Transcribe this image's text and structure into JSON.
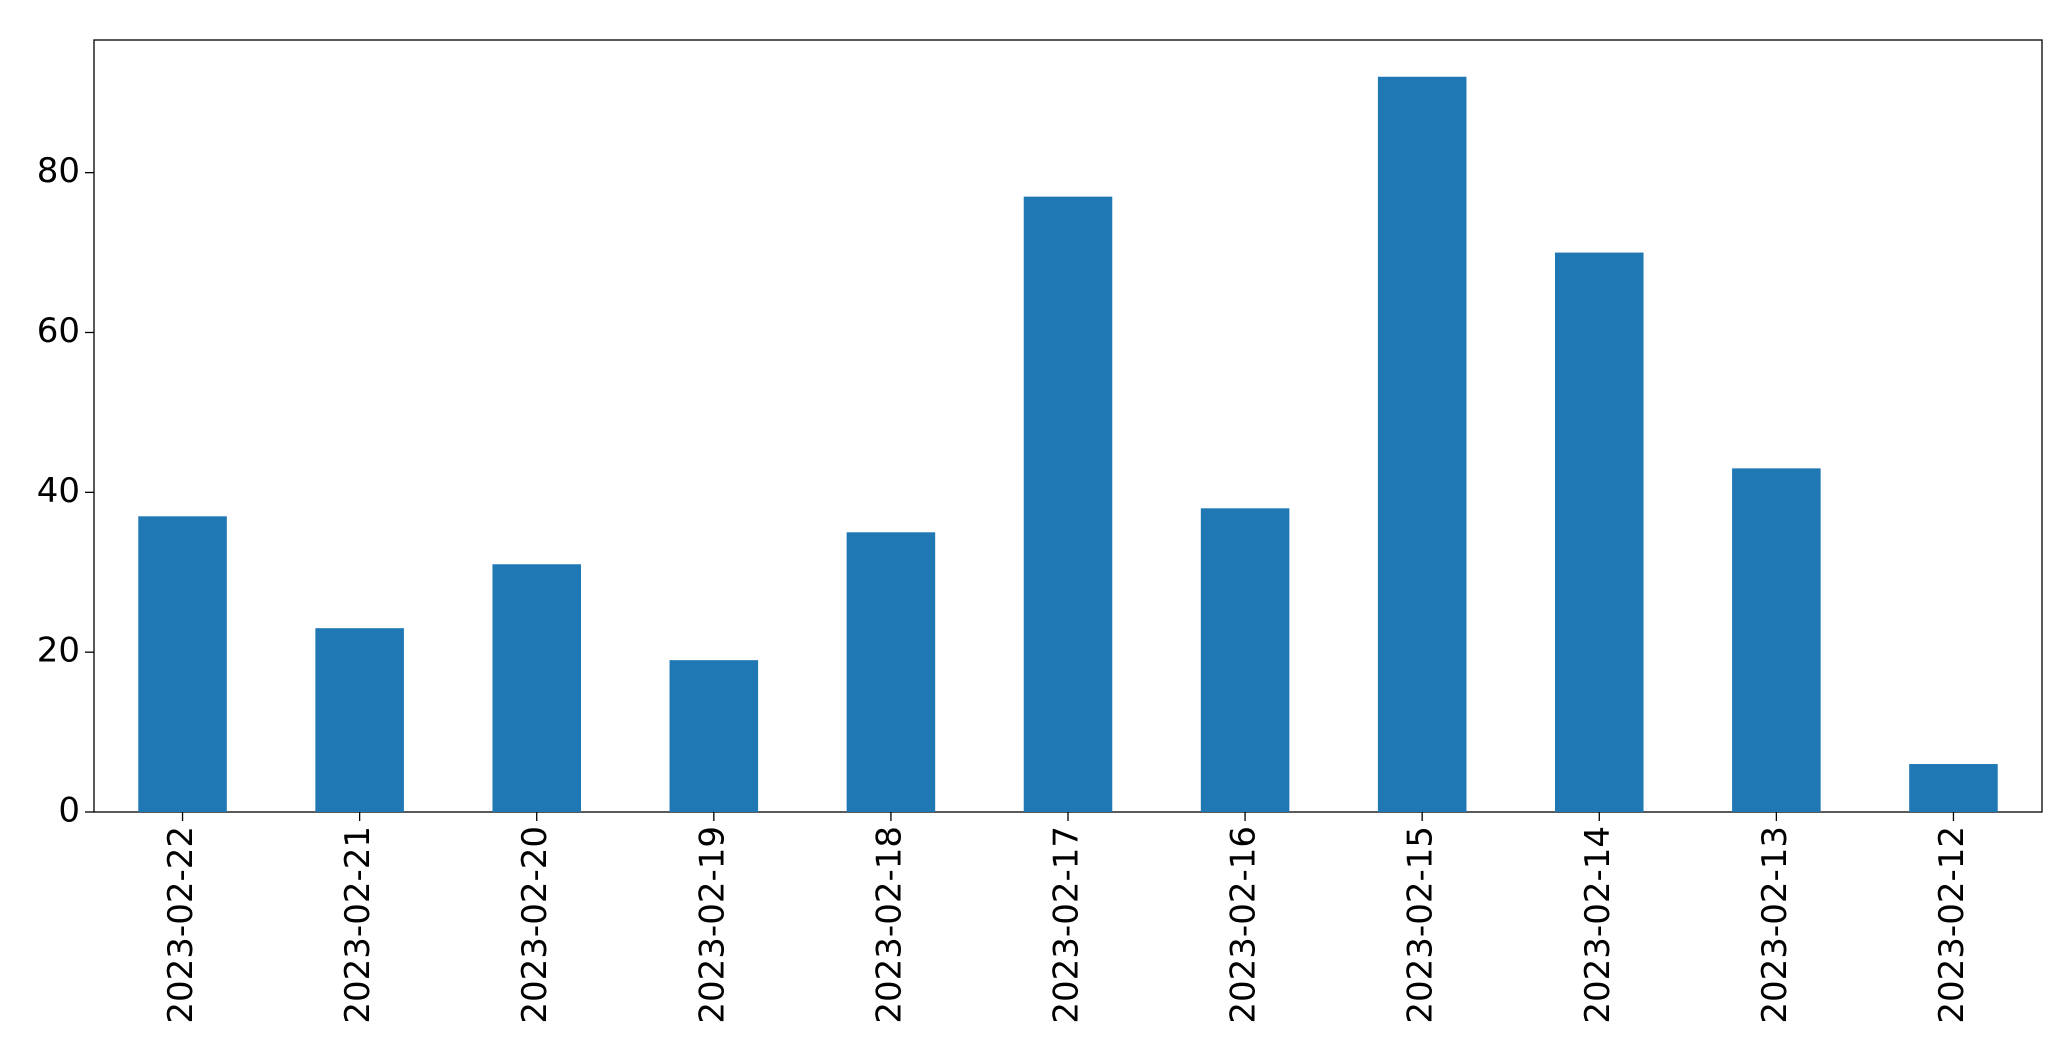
{
  "chart_data": {
    "type": "bar",
    "categories": [
      "2023-02-22",
      "2023-02-21",
      "2023-02-20",
      "2023-02-19",
      "2023-02-18",
      "2023-02-17",
      "2023-02-16",
      "2023-02-15",
      "2023-02-14",
      "2023-02-13",
      "2023-02-12"
    ],
    "values": [
      37,
      23,
      31,
      19,
      35,
      77,
      38,
      92,
      70,
      43,
      6
    ],
    "color": "#1f77b4",
    "ylim": [
      0,
      96.6
    ],
    "yticks": [
      0,
      20,
      40,
      60,
      80
    ],
    "grid": false
  }
}
